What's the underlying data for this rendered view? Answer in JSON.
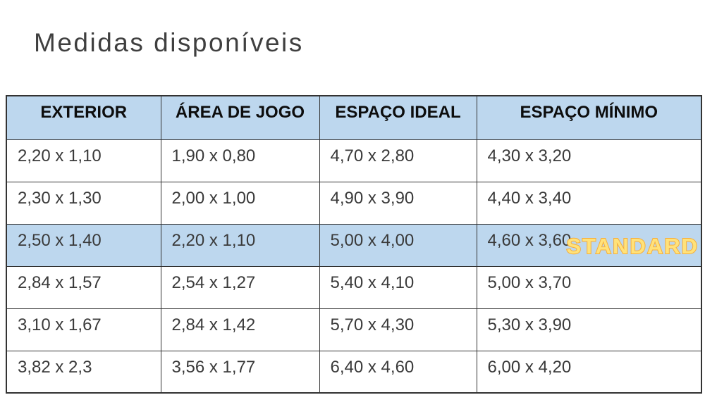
{
  "page": {
    "title": "Medidas disponíveis"
  },
  "table": {
    "headers": [
      "EXTERIOR",
      "ÁREA DE JOGO",
      "ESPAÇO IDEAL",
      "ESPAÇO MÍNIMO"
    ],
    "rows": [
      [
        "2,20 x 1,10",
        "1,90 x 0,80",
        "4,70 x 2,80",
        "4,30 x 3,20"
      ],
      [
        "2,30 x 1,30",
        "2,00 x 1,00",
        "4,90 x 3,90",
        "4,40 x 3,40"
      ],
      [
        "2,50 x 1,40",
        "2,20 x 1,10",
        "5,00 x 4,00",
        "4,60 x 3,60"
      ],
      [
        "2,84 x 1,57",
        "2,54 x 1,27",
        "5,40 x 4,10",
        "5,00 x 3,70"
      ],
      [
        "3,10 x 1,67",
        "2,84 x 1,42",
        "5,70 x 4,30",
        "5,30 x 3,90"
      ],
      [
        "3,82 x 2,3",
        "3,56 x 1,77",
        "6,40 x 4,60",
        "6,00 x 4,20"
      ]
    ],
    "highlighted_row_index": 2,
    "badge_label": "STANDARD"
  },
  "colors": {
    "header_bg": "#bdd7ee",
    "highlight_bg": "#bdd7ee",
    "border": "#333333",
    "badge_fill": "#ffe27a",
    "badge_outline": "#f6ae3c",
    "title_text": "#3f3f3f"
  }
}
